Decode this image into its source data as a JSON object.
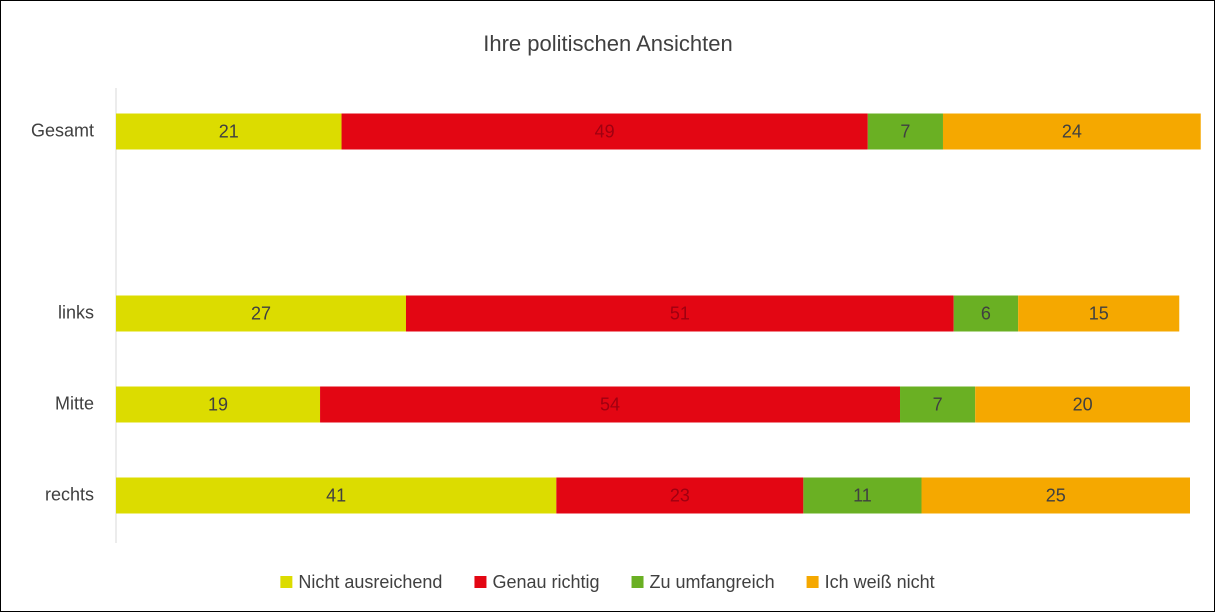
{
  "chart_data": {
    "type": "stacked-bar-horizontal",
    "title": "Ihre politischen Ansichten",
    "categories": [
      "Gesamt",
      null,
      "links",
      "Mitte",
      "rechts"
    ],
    "series": [
      {
        "name": "Nicht ausreichend",
        "color": "#dcdc00",
        "values": [
          21,
          null,
          27,
          19,
          41
        ]
      },
      {
        "name": "Genau richtig",
        "color": "#e30613",
        "values": [
          49,
          null,
          51,
          54,
          23
        ]
      },
      {
        "name": "Zu umfangreich",
        "color": "#6ab023",
        "values": [
          7,
          null,
          6,
          7,
          11
        ]
      },
      {
        "name": "Ich weiß nicht",
        "color": "#f5a800",
        "values": [
          24,
          null,
          15,
          20,
          25
        ]
      }
    ],
    "xlim": [
      0,
      100
    ],
    "legend": "bottom"
  }
}
